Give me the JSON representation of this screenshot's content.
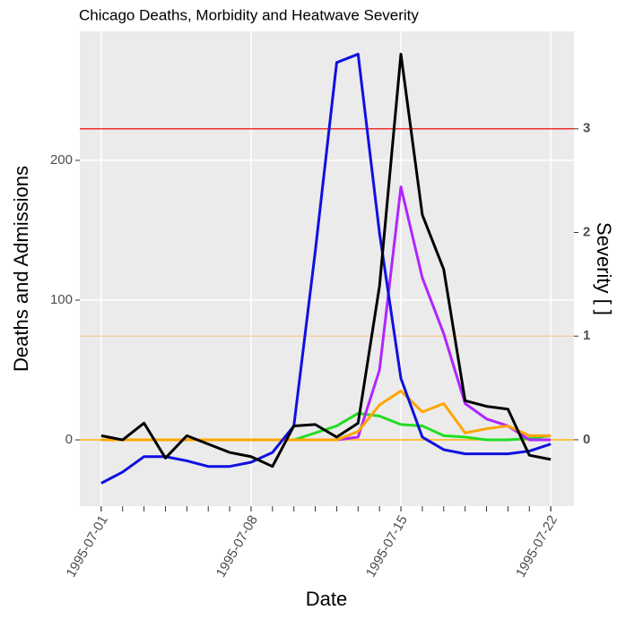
{
  "chart_data": {
    "type": "line",
    "title": "Chicago Deaths, Morbidity and Heatwave Severity",
    "xlabel": "Date",
    "ylabel": "Deaths and Admissions",
    "y2label": "Severity [ ]",
    "x": [
      "1995-07-01",
      "1995-07-02",
      "1995-07-03",
      "1995-07-04",
      "1995-07-05",
      "1995-07-06",
      "1995-07-07",
      "1995-07-08",
      "1995-07-09",
      "1995-07-10",
      "1995-07-11",
      "1995-07-12",
      "1995-07-13",
      "1995-07-14",
      "1995-07-15",
      "1995-07-16",
      "1995-07-17",
      "1995-07-18",
      "1995-07-19",
      "1995-07-20",
      "1995-07-21",
      "1995-07-22"
    ],
    "xlim": [
      "1995-06-30",
      "1995-07-23"
    ],
    "xticks": [
      "1995-07-01",
      "1995-07-08",
      "1995-07-15",
      "1995-07-22"
    ],
    "ylim": [
      -47.4,
      292.3
    ],
    "yticks": [
      0,
      100,
      200
    ],
    "y2lim": [
      -0.64,
      3.94
    ],
    "y2ticks": [
      0,
      1,
      2,
      3
    ],
    "grid": true,
    "hlines": [
      {
        "value": 3,
        "axis": "y2",
        "color": "#ee3030"
      },
      {
        "value": 1,
        "axis": "y2",
        "color": "#f7cfa8"
      },
      {
        "value": 0,
        "axis": "y2",
        "color": "#ffb000"
      }
    ],
    "series": [
      {
        "color": "#22dd22",
        "values": [
          0,
          0,
          0,
          0,
          0,
          0,
          0,
          0,
          0,
          0,
          5,
          10,
          19,
          17,
          11,
          10,
          3,
          2,
          0,
          0,
          1,
          3
        ]
      },
      {
        "color": "#b026ff",
        "values": [
          0,
          0,
          0,
          0,
          0,
          0,
          0,
          0,
          0,
          0,
          0,
          0,
          2,
          50,
          181,
          116,
          76,
          26,
          15,
          10,
          0,
          0
        ]
      },
      {
        "color": "#ffa500",
        "values": [
          0,
          0,
          0,
          0,
          0,
          0,
          0,
          0,
          0,
          0,
          0,
          0,
          6,
          25,
          35,
          20,
          26,
          5,
          8,
          10,
          3,
          3
        ]
      },
      {
        "color": "#1010e0",
        "values": [
          -31,
          -23,
          -12,
          -12,
          -15,
          -19,
          -19,
          -16,
          -9,
          10,
          135,
          270,
          276,
          148,
          44,
          2,
          -7,
          -10,
          -10,
          -10,
          -8,
          -3
        ]
      },
      {
        "color": "#000000",
        "values": [
          3,
          0,
          12,
          -13,
          3,
          -3,
          -9,
          -12,
          -19,
          10,
          11,
          2,
          12,
          110,
          276,
          161,
          122,
          28,
          24,
          22,
          -11,
          -14
        ]
      }
    ]
  }
}
